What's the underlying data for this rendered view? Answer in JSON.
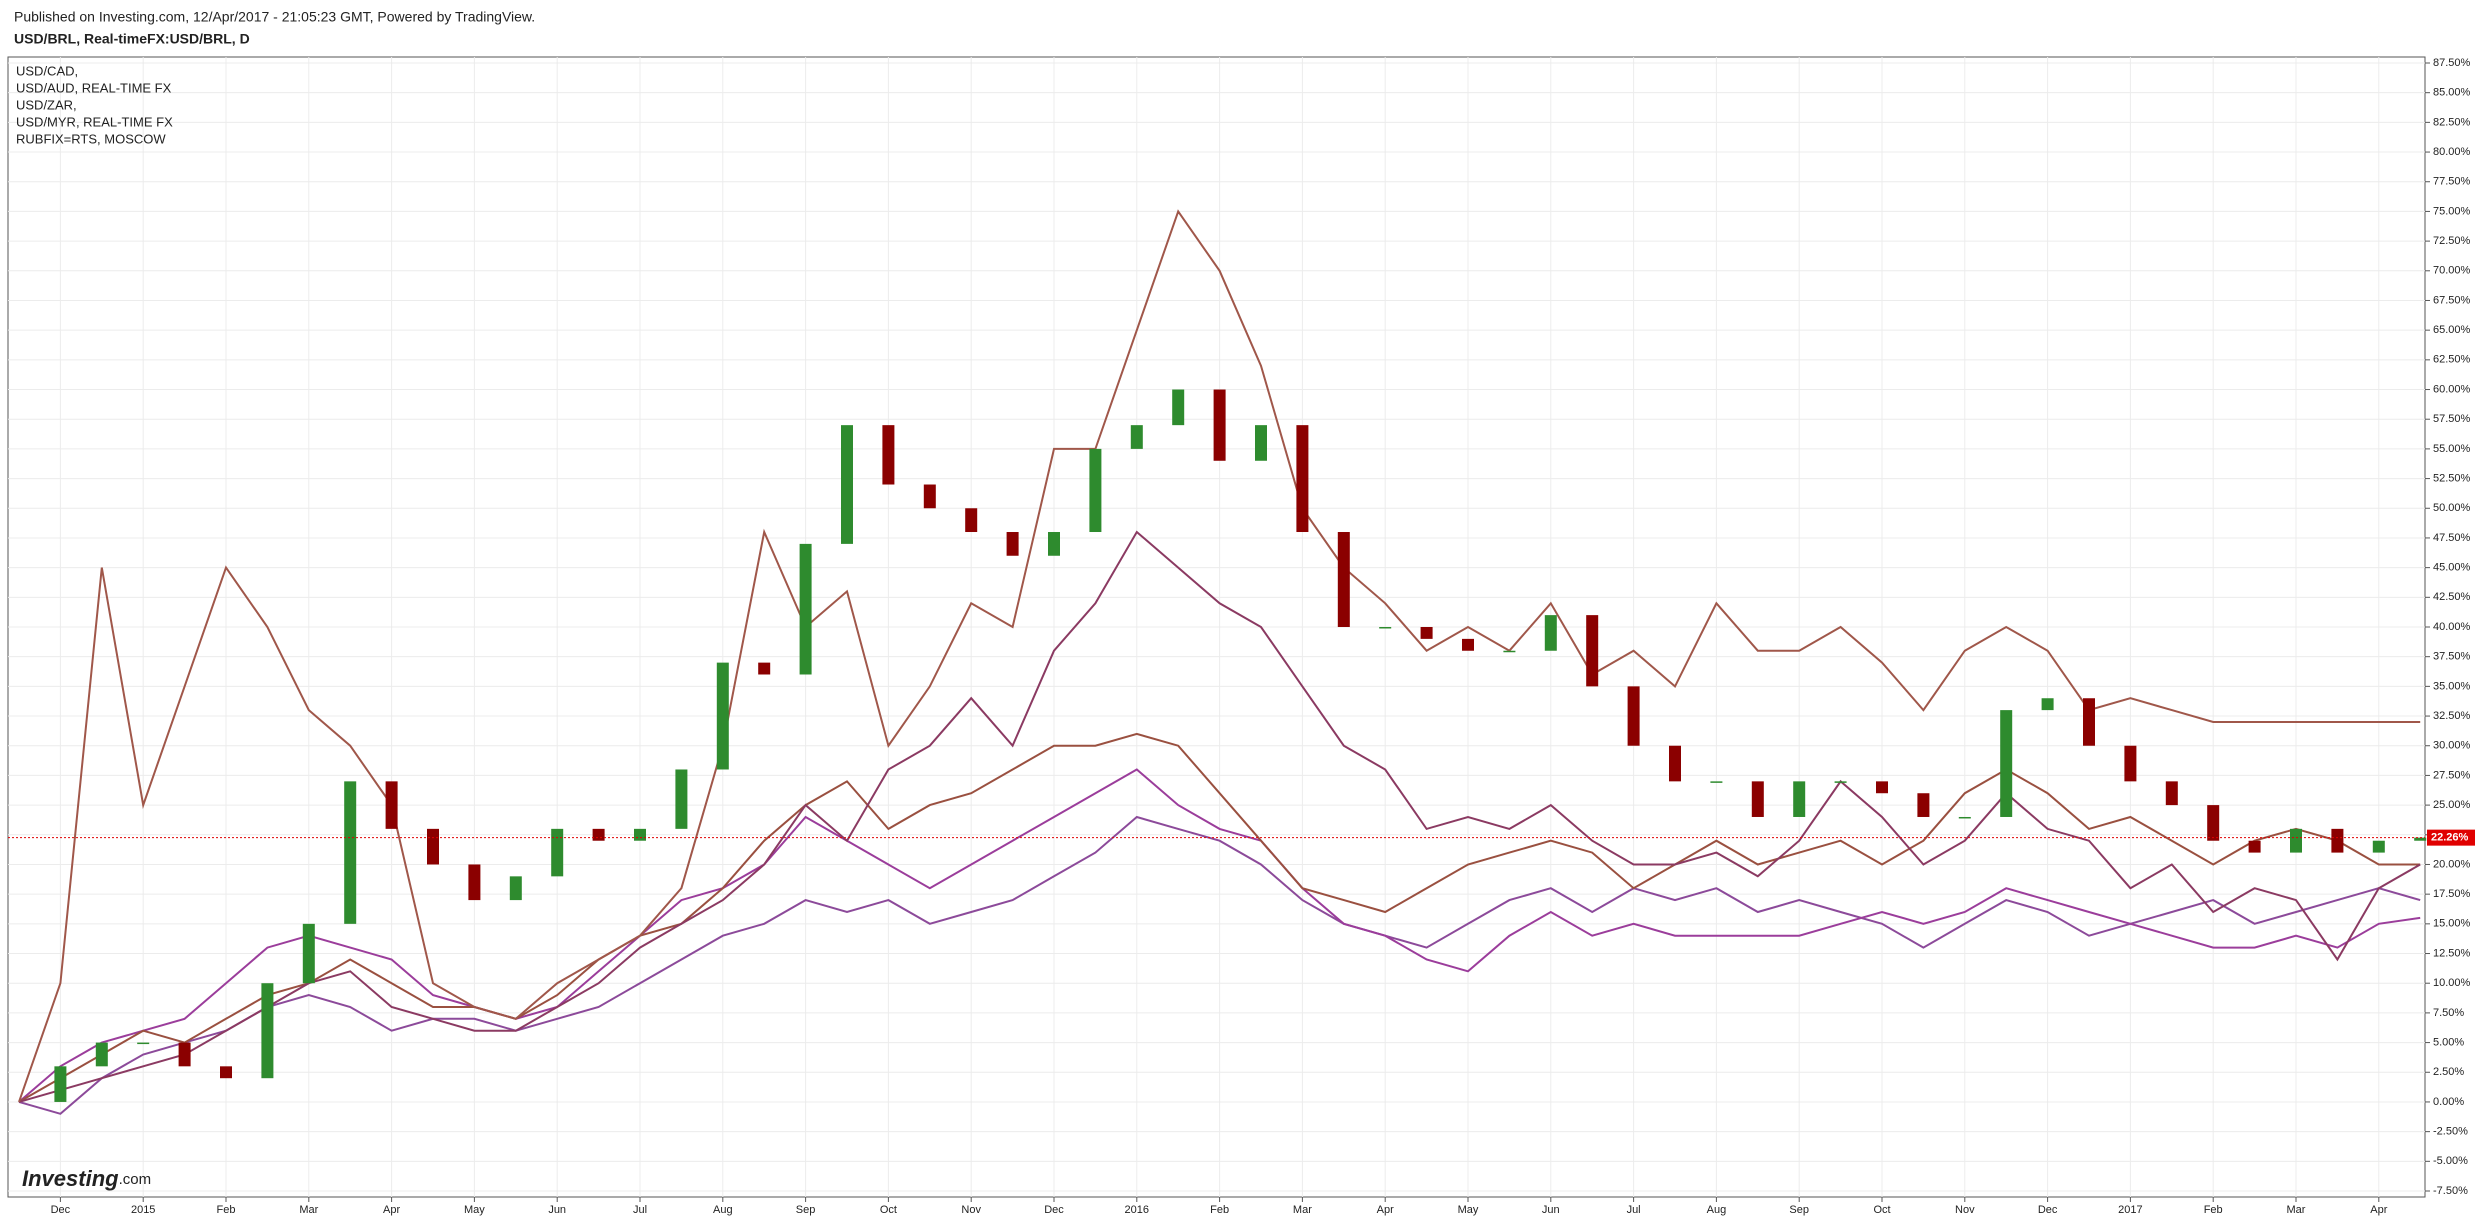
{
  "header": {
    "published": "Published on Investing.com, 12/Apr/2017 - 21:05:23 GMT, Powered by TradingView.",
    "symbol": "USD/BRL, Real-timeFX:USD/BRL, D",
    "logo": "Investing",
    "logo_suffix": ".com"
  },
  "chart_data": {
    "type": "line",
    "categories": [
      null,
      "Dec",
      null,
      "2015",
      null,
      "Feb",
      null,
      "Mar",
      null,
      "Apr",
      null,
      "May",
      null,
      "Jun",
      null,
      "Jul",
      null,
      "Aug",
      null,
      "Sep",
      null,
      "Oct",
      null,
      "Nov",
      null,
      "Dec",
      null,
      "2016",
      null,
      "Feb",
      null,
      "Mar",
      null,
      "Apr",
      null,
      "May",
      null,
      "Jun",
      null,
      "Jul",
      null,
      "Aug",
      null,
      "Sep",
      null,
      "Oct",
      null,
      "Nov",
      null,
      "Dec",
      null,
      "2017",
      null,
      "Feb",
      null,
      "Mar",
      null,
      "Apr",
      null
    ],
    "main_series": {
      "type": "candlestick",
      "up_color": "#2e8b2e",
      "down_color": "#8b0000",
      "values": [
        0,
        3,
        5,
        5,
        3,
        2,
        10,
        15,
        27,
        23,
        20,
        17,
        19,
        23,
        22,
        23,
        28,
        37,
        36,
        47,
        57,
        52,
        50,
        48,
        46,
        48,
        55,
        57,
        60,
        54,
        57,
        48,
        40,
        40,
        39,
        38,
        38,
        41,
        35,
        30,
        27,
        27,
        24,
        27,
        27,
        26,
        24,
        24,
        33,
        34,
        30,
        27,
        25,
        22,
        21,
        23,
        21,
        22,
        22.26
      ]
    },
    "current_price": {
      "value": 22.26,
      "label": "22.26%",
      "color": "#e00000"
    },
    "series": [
      {
        "name": "USD/CAD,",
        "color": "#8c4a9a",
        "values": [
          0,
          -1,
          2,
          4,
          5,
          6,
          8,
          9,
          8,
          6,
          7,
          7,
          6,
          7,
          8,
          10,
          12,
          14,
          15,
          17,
          16,
          17,
          15,
          16,
          17,
          19,
          21,
          24,
          23,
          22,
          20,
          17,
          15,
          14,
          13,
          15,
          17,
          18,
          16,
          18,
          17,
          18,
          16,
          17,
          16,
          15,
          13,
          15,
          17,
          16,
          14,
          15,
          16,
          17,
          15,
          16,
          17,
          18,
          17
        ]
      },
      {
        "name": "USD/AUD, REAL-TIME FX",
        "color": "#9b3d9b",
        "values": [
          0,
          3,
          5,
          6,
          7,
          10,
          13,
          14,
          13,
          12,
          9,
          8,
          7,
          8,
          11,
          14,
          17,
          18,
          20,
          24,
          22,
          20,
          18,
          20,
          22,
          24,
          26,
          28,
          25,
          23,
          22,
          18,
          15,
          14,
          12,
          11,
          14,
          16,
          14,
          15,
          14,
          14,
          14,
          14,
          15,
          16,
          15,
          16,
          18,
          17,
          16,
          15,
          14,
          13,
          13,
          14,
          13,
          15,
          15.5
        ]
      },
      {
        "name": "USD/ZAR,",
        "color": "#9a5040",
        "values": [
          0,
          2,
          4,
          6,
          5,
          7,
          9,
          10,
          12,
          10,
          8,
          8,
          7,
          9,
          12,
          14,
          15,
          18,
          22,
          25,
          27,
          23,
          25,
          26,
          28,
          30,
          30,
          31,
          30,
          26,
          22,
          18,
          17,
          16,
          18,
          20,
          21,
          22,
          21,
          18,
          20,
          22,
          20,
          21,
          22,
          20,
          22,
          26,
          28,
          26,
          23,
          24,
          22,
          20,
          22,
          23,
          22,
          20,
          20
        ]
      },
      {
        "name": "USD/MYR, REAL-TIME FX",
        "color": "#8b3a62",
        "values": [
          0,
          1,
          2,
          3,
          4,
          6,
          8,
          10,
          11,
          8,
          7,
          6,
          6,
          8,
          10,
          13,
          15,
          17,
          20,
          25,
          22,
          28,
          30,
          34,
          30,
          38,
          42,
          48,
          45,
          42,
          40,
          35,
          30,
          28,
          23,
          24,
          23,
          25,
          22,
          20,
          20,
          21,
          19,
          22,
          27,
          24,
          20,
          22,
          26,
          23,
          22,
          18,
          20,
          16,
          18,
          17,
          12,
          18,
          20
        ]
      },
      {
        "name": "RUBFIX=RTS, MOSCOW",
        "color": "#a0574a",
        "values": [
          0,
          10,
          45,
          25,
          35,
          45,
          40,
          33,
          30,
          25,
          10,
          8,
          7,
          10,
          12,
          14,
          18,
          30,
          48,
          40,
          43,
          30,
          35,
          42,
          40,
          55,
          55,
          65,
          75,
          70,
          62,
          50,
          45,
          42,
          38,
          40,
          38,
          42,
          36,
          38,
          35,
          42,
          38,
          38,
          40,
          37,
          33,
          38,
          40,
          38,
          33,
          34,
          33,
          32,
          32,
          32,
          32,
          32,
          32
        ]
      }
    ],
    "ylim": [
      -7.5,
      87.5
    ],
    "yticks": [
      {
        "value": 87.5,
        "label": "87.50%"
      },
      {
        "value": 85,
        "label": "85.00%"
      },
      {
        "value": 82.5,
        "label": "82.50%"
      },
      {
        "value": 80,
        "label": "80.00%"
      },
      {
        "value": 77.5,
        "label": "77.50%"
      },
      {
        "value": 75,
        "label": "75.00%"
      },
      {
        "value": 72.5,
        "label": "72.50%"
      },
      {
        "value": 70,
        "label": "70.00%"
      },
      {
        "value": 67.5,
        "label": "67.50%"
      },
      {
        "value": 65,
        "label": "65.00%"
      },
      {
        "value": 62.5,
        "label": "62.50%"
      },
      {
        "value": 60,
        "label": "60.00%"
      },
      {
        "value": 57.5,
        "label": "57.50%"
      },
      {
        "value": 55,
        "label": "55.00%"
      },
      {
        "value": 52.5,
        "label": "52.50%"
      },
      {
        "value": 50,
        "label": "50.00%"
      },
      {
        "value": 47.5,
        "label": "47.50%"
      },
      {
        "value": 45,
        "label": "45.00%"
      },
      {
        "value": 42.5,
        "label": "42.50%"
      },
      {
        "value": 40,
        "label": "40.00%"
      },
      {
        "value": 37.5,
        "label": "37.50%"
      },
      {
        "value": 35,
        "label": "35.00%"
      },
      {
        "value": 32.5,
        "label": "32.50%"
      },
      {
        "value": 30,
        "label": "30.00%"
      },
      {
        "value": 27.5,
        "label": "27.50%"
      },
      {
        "value": 25,
        "label": "25.00%"
      },
      {
        "value": 22.5,
        "label": "22.50%"
      },
      {
        "value": 20,
        "label": "20.00%"
      },
      {
        "value": 17.5,
        "label": "17.50%"
      },
      {
        "value": 15,
        "label": "15.00%"
      },
      {
        "value": 12.5,
        "label": "12.50%"
      },
      {
        "value": 10,
        "label": "10.00%"
      },
      {
        "value": 7.5,
        "label": "7.50%"
      },
      {
        "value": 5,
        "label": "5.00%"
      },
      {
        "value": 2.5,
        "label": "2.50%"
      },
      {
        "value": 0,
        "label": "0.00%"
      },
      {
        "value": -2.5,
        "label": "-2.50%"
      },
      {
        "value": -5,
        "label": "-5.00%"
      },
      {
        "value": -7.5,
        "label": "-7.50%"
      }
    ],
    "grid": true
  }
}
